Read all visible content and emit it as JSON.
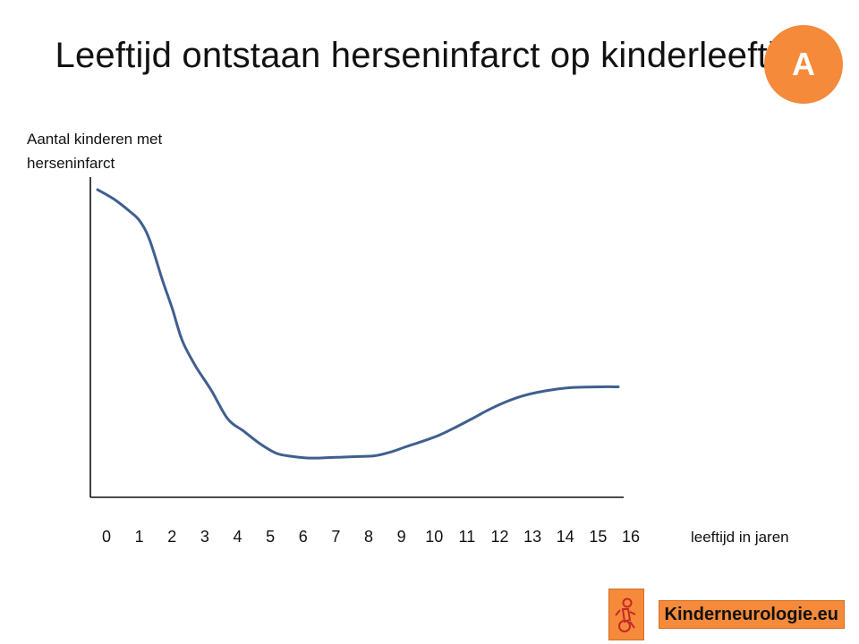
{
  "title": "Leeftijd ontstaan herseninfarct op kinderleeftijd",
  "badge": "A",
  "colors": {
    "line": "#3f5f8f",
    "axis": "#111111",
    "badge": "#f58a3b",
    "logo": "#f58a3b"
  },
  "logo": {
    "text": "Kinderneurologie.eu",
    "icon": "child-wheelchair-icon"
  },
  "chart_data": {
    "type": "line",
    "title": "Leeftijd ontstaan herseninfarct op kinderleeftijd",
    "xlabel": "leeftijd in jaren",
    "ylabel": "Aantal kinderen met\nherseninfarct",
    "x_ticks": [
      "0",
      "1",
      "2",
      "3",
      "4",
      "5",
      "6",
      "7",
      "8",
      "9",
      "10",
      "11",
      "12",
      "13",
      "14",
      "15",
      "16"
    ],
    "xlim": [
      0,
      16
    ],
    "ylim": [
      0,
      100
    ],
    "y_ticks_shown": false,
    "grid": false,
    "legend": "none",
    "series": [
      {
        "x": [
          0,
          0.5,
          1,
          1.3,
          1.6,
          2.0,
          2.3,
          2.6,
          3.0,
          3.5,
          4.0,
          4.5,
          5.0,
          5.5,
          6.0,
          6.5,
          7.0,
          7.5,
          8.0,
          8.5,
          9.0,
          9.5,
          10.0,
          10.5,
          11.0,
          11.5,
          12.0,
          12.5,
          13.0,
          13.5,
          14.0,
          14.5,
          15.0,
          15.5,
          16.0
        ],
        "y": [
          98,
          95,
          91,
          88,
          82,
          69,
          60,
          50,
          42,
          34,
          25,
          21,
          17,
          14,
          13,
          12.5,
          12.6,
          12.8,
          13,
          13.2,
          14.4,
          16.2,
          17.9,
          19.8,
          22.3,
          25.0,
          27.8,
          30.2,
          32.1,
          33.4,
          34.3,
          34.9,
          35.1,
          35.2,
          35.2
        ]
      }
    ]
  }
}
